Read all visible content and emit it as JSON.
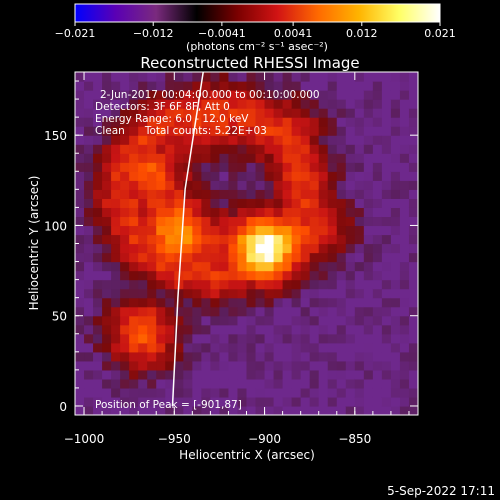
{
  "chart_data": {
    "type": "heatmap",
    "title": "Reconstructed RHESSI Image",
    "xlabel": "Heliocentric X (arcsec)",
    "ylabel": "Heliocentric Y (arcsec)",
    "xlim": [
      -1005,
      -815
    ],
    "ylim": [
      -5,
      185
    ],
    "xticks": [
      -1000,
      -950,
      -900,
      -850
    ],
    "yticks": [
      0,
      50,
      100,
      150
    ],
    "xtick_labels": [
      "−1000",
      "−950",
      "−900",
      "−850"
    ],
    "ytick_labels": [
      "0",
      "50",
      "100",
      "150"
    ],
    "colorbar": {
      "min": -0.021,
      "max": 0.021,
      "ticks": [
        -0.021,
        -0.012,
        -0.0041,
        0.0041,
        0.012,
        0.021
      ],
      "tick_labels": [
        "−0.021",
        "−0.012",
        "−0.0041",
        "0.0041",
        "0.012",
        "0.021"
      ],
      "label": "(photons cm⁻² s⁻¹ asec⁻²)",
      "colors": [
        "#0000ff",
        "#5a00b4",
        "#7a2a7e",
        "#000000",
        "#7a0000",
        "#d21414",
        "#ff6a00",
        "#ffb400",
        "#ffff66",
        "#ffffff"
      ]
    },
    "annotations": [
      "2-Jun-2017 00:04:00.000 to 00:10:00.000",
      "Detectors: 3F 6F 8F, Att 0",
      "Energy Range: 6.0 - 12.0 keV",
      "Clean      Total counts: 5.22E+03"
    ],
    "peak_label": "Position of Peak = [-901,87]",
    "peak": [
      -901,
      87
    ],
    "sources": [
      {
        "x": -901,
        "y": 87,
        "peak": 1.0
      },
      {
        "x": -948,
        "y": 95,
        "peak": 0.72
      },
      {
        "x": -965,
        "y": 130,
        "peak": 0.55
      },
      {
        "x": -930,
        "y": 160,
        "peak": 0.5
      },
      {
        "x": -888,
        "y": 150,
        "peak": 0.45
      },
      {
        "x": -968,
        "y": 40,
        "peak": 0.55
      },
      {
        "x": -870,
        "y": 100,
        "peak": 0.35
      }
    ],
    "limb_x_at_y": [
      {
        "y": 0,
        "x": -951
      },
      {
        "y": 60,
        "x": -948
      },
      {
        "y": 120,
        "x": -944
      },
      {
        "y": 185,
        "x": -934
      }
    ]
  },
  "footer": {
    "timestamp": "5-Sep-2022 17:11"
  }
}
